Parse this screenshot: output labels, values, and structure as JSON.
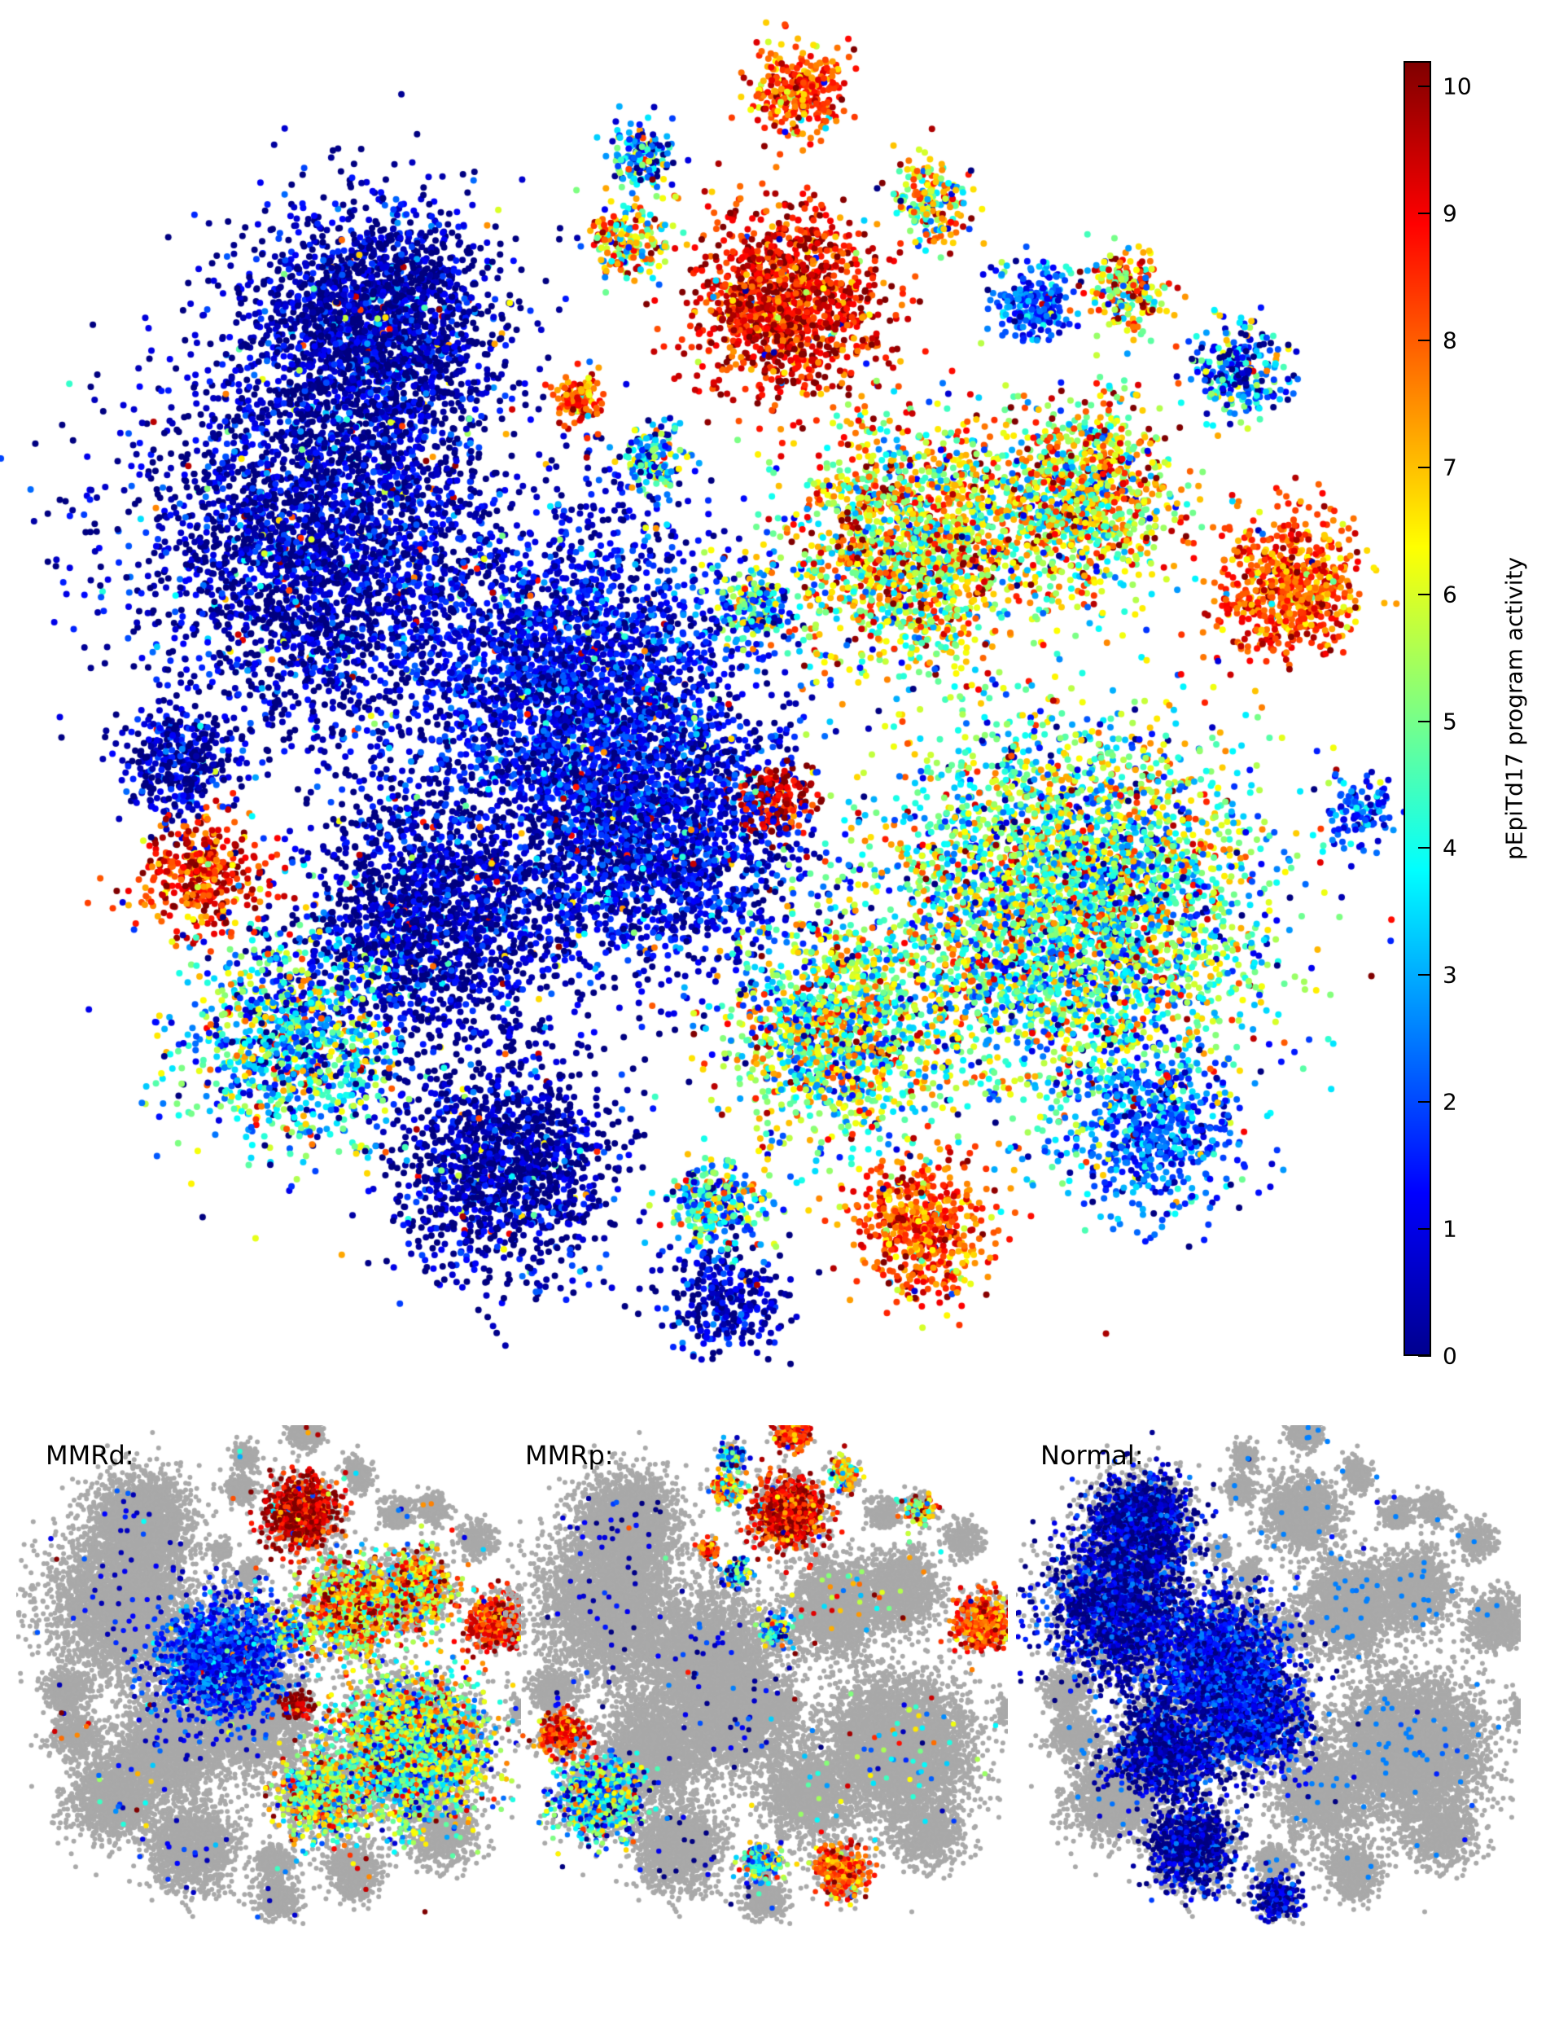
{
  "chart_data": {
    "type": "scatter",
    "title": "",
    "colorbar": {
      "label": "pEpiTd17 program activity",
      "range": [
        0,
        10.2
      ],
      "ticks": [
        "0",
        "1",
        "2",
        "3",
        "4",
        "5",
        "6",
        "7",
        "8",
        "9",
        "10"
      ],
      "colormap": "jet"
    },
    "xlim": [
      -57,
      57
    ],
    "ylim": [
      -57,
      57
    ],
    "clusters_note": "approximate t-SNE clusters: [x, y, spread, mean activity, point count]",
    "clusters": [
      [
        -27,
        33,
        9,
        0.3,
        2200
      ],
      [
        -31,
        15,
        14,
        0.4,
        3200
      ],
      [
        -10,
        4,
        12,
        1.0,
        2600
      ],
      [
        -4,
        -9,
        11,
        0.8,
        2200
      ],
      [
        -22,
        -15,
        10,
        0.3,
        1800
      ],
      [
        -16,
        -36,
        8,
        0.2,
        1400
      ],
      [
        -41,
        -12,
        4.5,
        8.5,
        400
      ],
      [
        -33,
        -26,
        8,
        3.5,
        1100
      ],
      [
        -43,
        -3,
        4,
        0.5,
        350
      ],
      [
        7,
        35,
        7,
        9.0,
        1300
      ],
      [
        8,
        52,
        3.5,
        8.0,
        300
      ],
      [
        -6,
        40,
        3,
        6.0,
        200
      ],
      [
        -5,
        47,
        2.5,
        3.0,
        150
      ],
      [
        19,
        43,
        3,
        5.5,
        200
      ],
      [
        27,
        35,
        3,
        2.0,
        220
      ],
      [
        35,
        36,
        3,
        7.0,
        200
      ],
      [
        44,
        29,
        3.5,
        2.5,
        260
      ],
      [
        48,
        11,
        5.5,
        8.0,
        650
      ],
      [
        54,
        -7,
        2.5,
        2.0,
        120
      ],
      [
        18,
        -41,
        5,
        8.0,
        550
      ],
      [
        1,
        -39,
        3.5,
        4.0,
        300
      ],
      [
        2,
        -47,
        4.5,
        0.5,
        300
      ],
      [
        37,
        -33,
        6,
        2.0,
        600
      ],
      [
        30,
        -15,
        14,
        4.5,
        4200
      ],
      [
        17,
        15,
        9,
        6.0,
        1700
      ],
      [
        31,
        19,
        7,
        6.0,
        1100
      ],
      [
        6,
        -6,
        2.5,
        9.5,
        180
      ],
      [
        -4,
        22,
        2.5,
        3.0,
        150
      ],
      [
        -10,
        27,
        2,
        8.0,
        120
      ],
      [
        4,
        10,
        3,
        3.5,
        200
      ],
      [
        11,
        -25,
        8,
        5.0,
        1300
      ]
    ],
    "panels": [
      {
        "label": "MMRd:",
        "highlight": [
          9,
          23,
          24,
          25,
          26,
          30,
          17,
          2,
          29
        ],
        "value_shift": 0.5
      },
      {
        "label": "MMRp:",
        "highlight": [
          9,
          10,
          11,
          12,
          17,
          6,
          7,
          19,
          20,
          29,
          27,
          28,
          15,
          13
        ],
        "value_shift": 0
      },
      {
        "label": "Normal:",
        "highlight": [
          0,
          1,
          2,
          3,
          4,
          5,
          21
        ],
        "value_shift": 0
      }
    ],
    "background_color": "#a9a9a9"
  }
}
